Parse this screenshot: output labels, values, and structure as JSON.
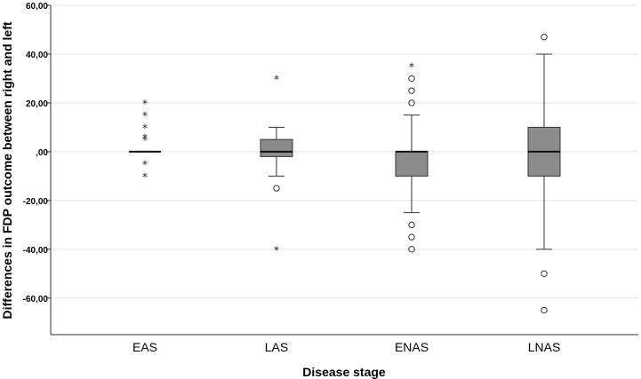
{
  "chart_data": {
    "type": "boxplot",
    "title": "",
    "xlabel": "Disease stage",
    "ylabel": "Differences in FDP outcome between right and left",
    "ylim": [
      -75,
      60
    ],
    "yticks": [
      60,
      40,
      20,
      0,
      -20,
      -40,
      -60
    ],
    "ytick_labels": [
      "60,00",
      "40,00",
      "20,00",
      ",00",
      "-20,00",
      "-40,00",
      "-60,00"
    ],
    "grid": true,
    "box_color": "#8c8c8c",
    "categories": [
      "EAS",
      "LAS",
      "ENAS",
      "LNAS"
    ],
    "groups": [
      {
        "name": "EAS",
        "q1": 0,
        "median": 0,
        "q3": 0,
        "whisker_low": 0,
        "whisker_high": 0,
        "outliers": [],
        "extremes": [
          20,
          15,
          10,
          6,
          5,
          -5,
          -10
        ]
      },
      {
        "name": "LAS",
        "q1": -2,
        "median": 0,
        "q3": 5,
        "whisker_low": -10,
        "whisker_high": 10,
        "outliers": [
          -15
        ],
        "extremes": [
          30,
          -40
        ]
      },
      {
        "name": "ENAS",
        "q1": -10,
        "median": 0,
        "q3": 0,
        "whisker_low": -25,
        "whisker_high": 15,
        "outliers": [
          30,
          25,
          20,
          -30,
          -35,
          -40
        ],
        "extremes": [
          35
        ]
      },
      {
        "name": "LNAS",
        "q1": -10,
        "median": 0,
        "q3": 10,
        "whisker_low": -40,
        "whisker_high": 40,
        "outliers": [
          47,
          -50,
          -65
        ],
        "extremes": []
      }
    ]
  }
}
